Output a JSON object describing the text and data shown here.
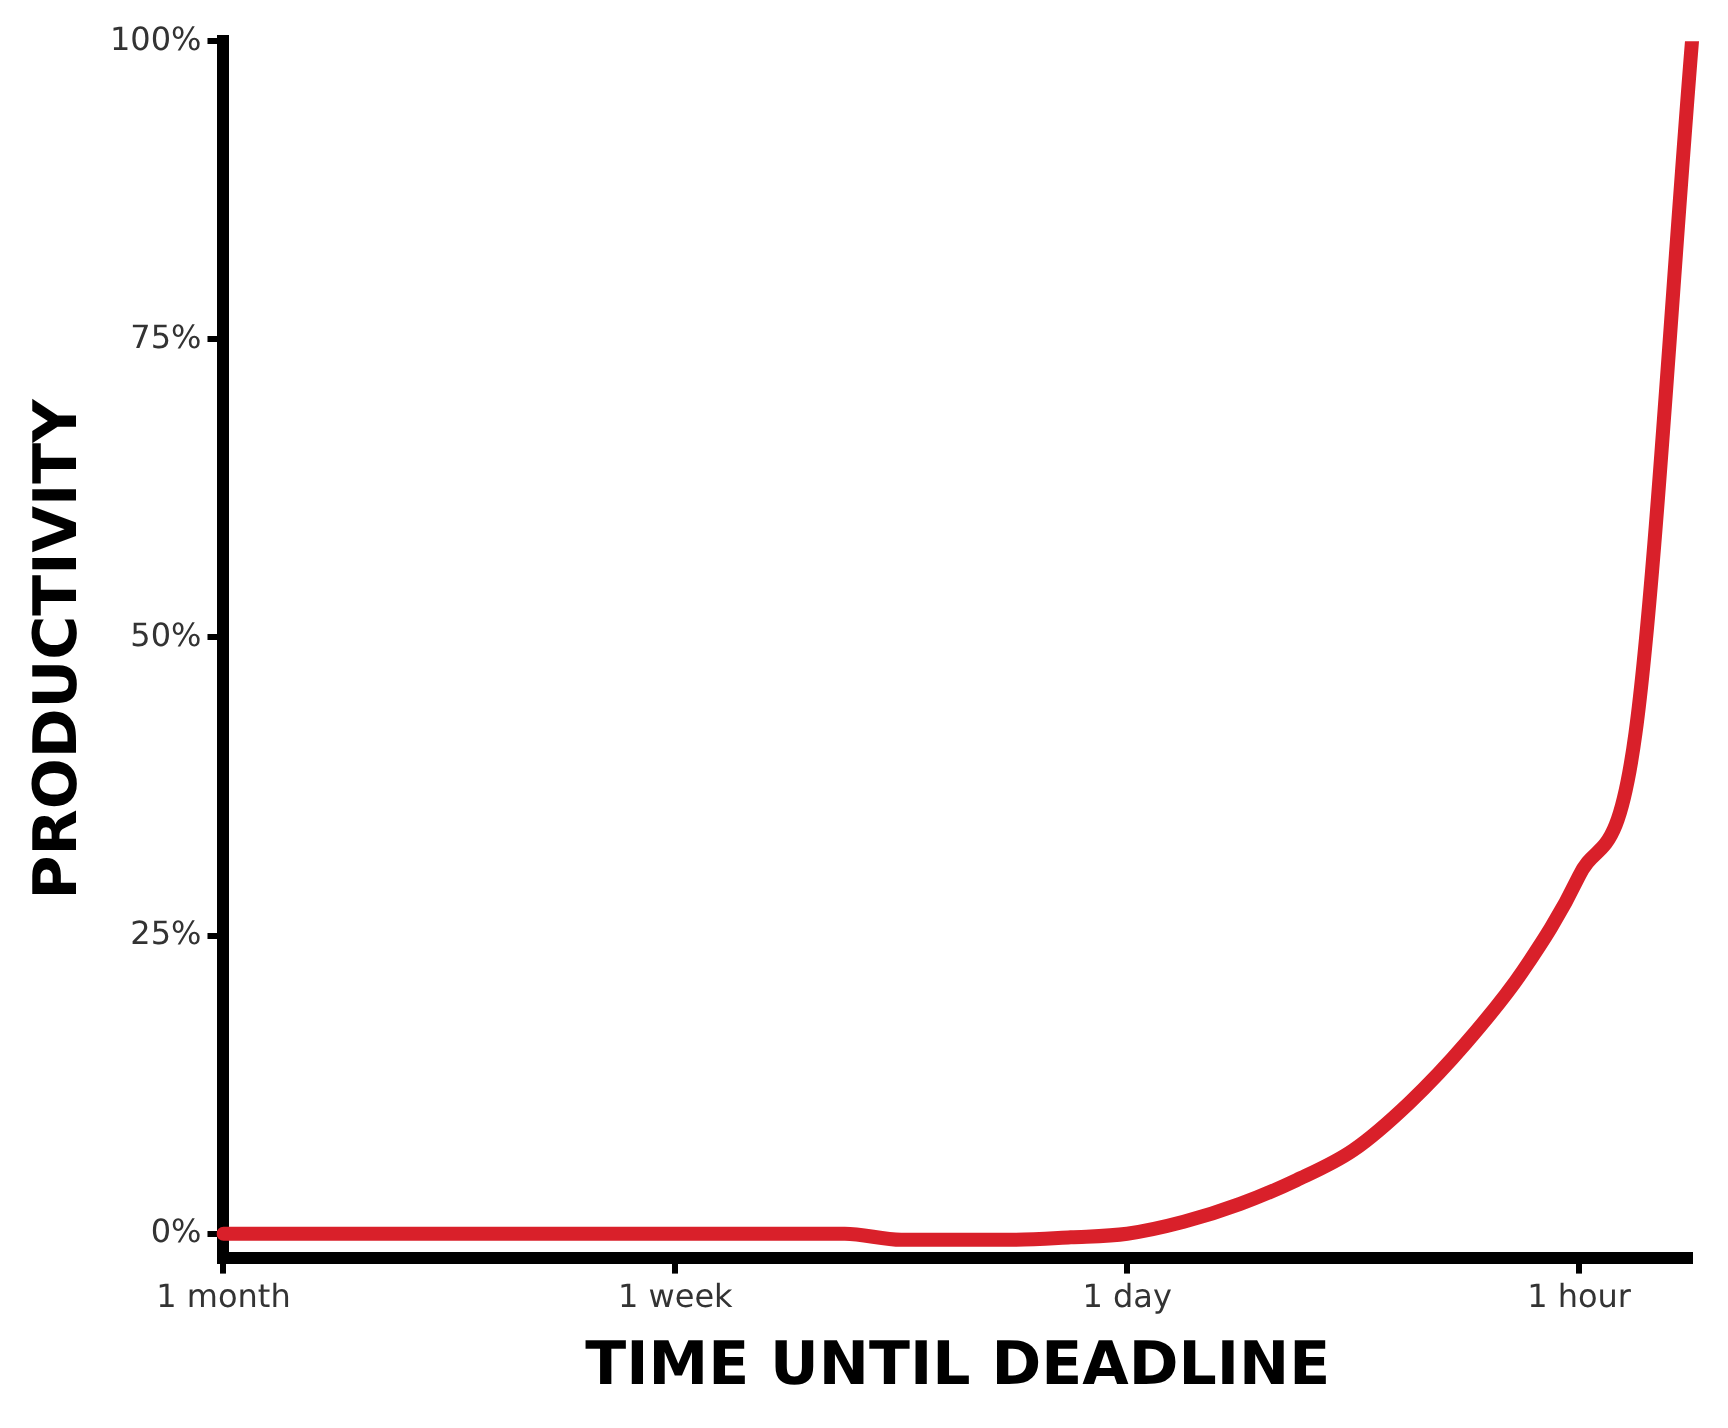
{
  "chart_data": {
    "type": "line",
    "xlabel": "TIME UNTIL DEADLINE",
    "ylabel": "PRODUCTIVITY",
    "categories": [
      "1 month",
      null,
      null,
      null,
      null,
      null,
      null,
      null,
      "1 week",
      null,
      null,
      null,
      null,
      null,
      null,
      null,
      "1 day",
      null,
      null,
      null,
      null,
      null,
      null,
      null,
      "1 hour",
      null,
      null
    ],
    "series": [
      {
        "color": "#d9202a",
        "values": [
          0,
          0,
          0,
          0,
          0,
          0,
          0,
          0,
          0,
          0,
          0,
          0,
          -0.5,
          -0.5,
          -0.5,
          -0.3,
          0,
          1,
          2.5,
          4.5,
          7,
          11,
          16,
          22,
          30,
          42,
          100
        ]
      }
    ],
    "ylim": [
      -2,
      100
    ],
    "yticks": [
      {
        "value": 0,
        "label": "0%"
      },
      {
        "value": 25,
        "label": "25%"
      },
      {
        "value": 50,
        "label": "50%"
      },
      {
        "value": 75,
        "label": "75%"
      },
      {
        "value": 100,
        "label": "100%"
      }
    ]
  }
}
